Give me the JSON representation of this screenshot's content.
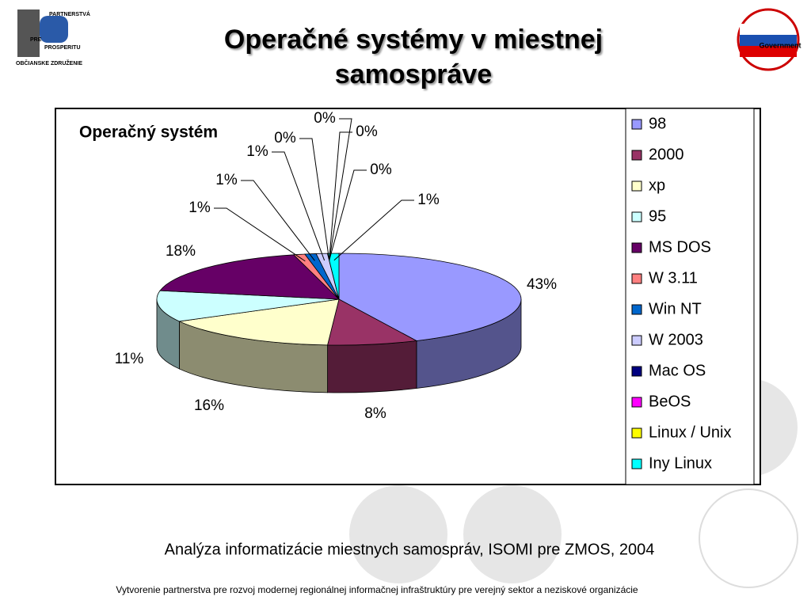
{
  "header": {
    "title": "Operačné systémy v miestnej samospráve",
    "logo_left": [
      "PARTNERSTVÁ",
      "PRE",
      "PROSPERITU",
      "OBČIANSKE ZDRUŽENIE"
    ],
    "logo_right": "Government"
  },
  "chart_data": {
    "type": "pie3d",
    "title": "Operačný systém",
    "categories": [
      "98",
      "2000",
      "xp",
      "95",
      "MS DOS",
      "W 3.11",
      "Win NT",
      "W 2003",
      "Mac OS",
      "BeOS",
      "Linux / Unix",
      null,
      "Iny Linux"
    ],
    "values": [
      43,
      8,
      16,
      11,
      18,
      1,
      1,
      1,
      0,
      0,
      0,
      0,
      1
    ],
    "value_labels": [
      "43%",
      "8%",
      "16%",
      "11%",
      "18%",
      "1%",
      "1%",
      "1%",
      "0%",
      "0%",
      "0%",
      "0%",
      "1%"
    ],
    "colors": [
      "#9999ff",
      "#993366",
      "#ffffcc",
      "#ccffff",
      "#660066",
      "#ff8080",
      "#0066cc",
      "#ccccff",
      "#000080",
      "#ff00ff",
      "#ffff00",
      "#c0c0c0",
      "#00ffff"
    ],
    "legend": "right"
  },
  "caption": "Analýza informatizácie miestnych samospráv, ISOMI pre ZMOS, 2004",
  "footer": "Vytvorenie partnerstva pre rozvoj modernej regionálnej informačnej infraštruktúry pre verejný sektor a neziskové organizácie"
}
